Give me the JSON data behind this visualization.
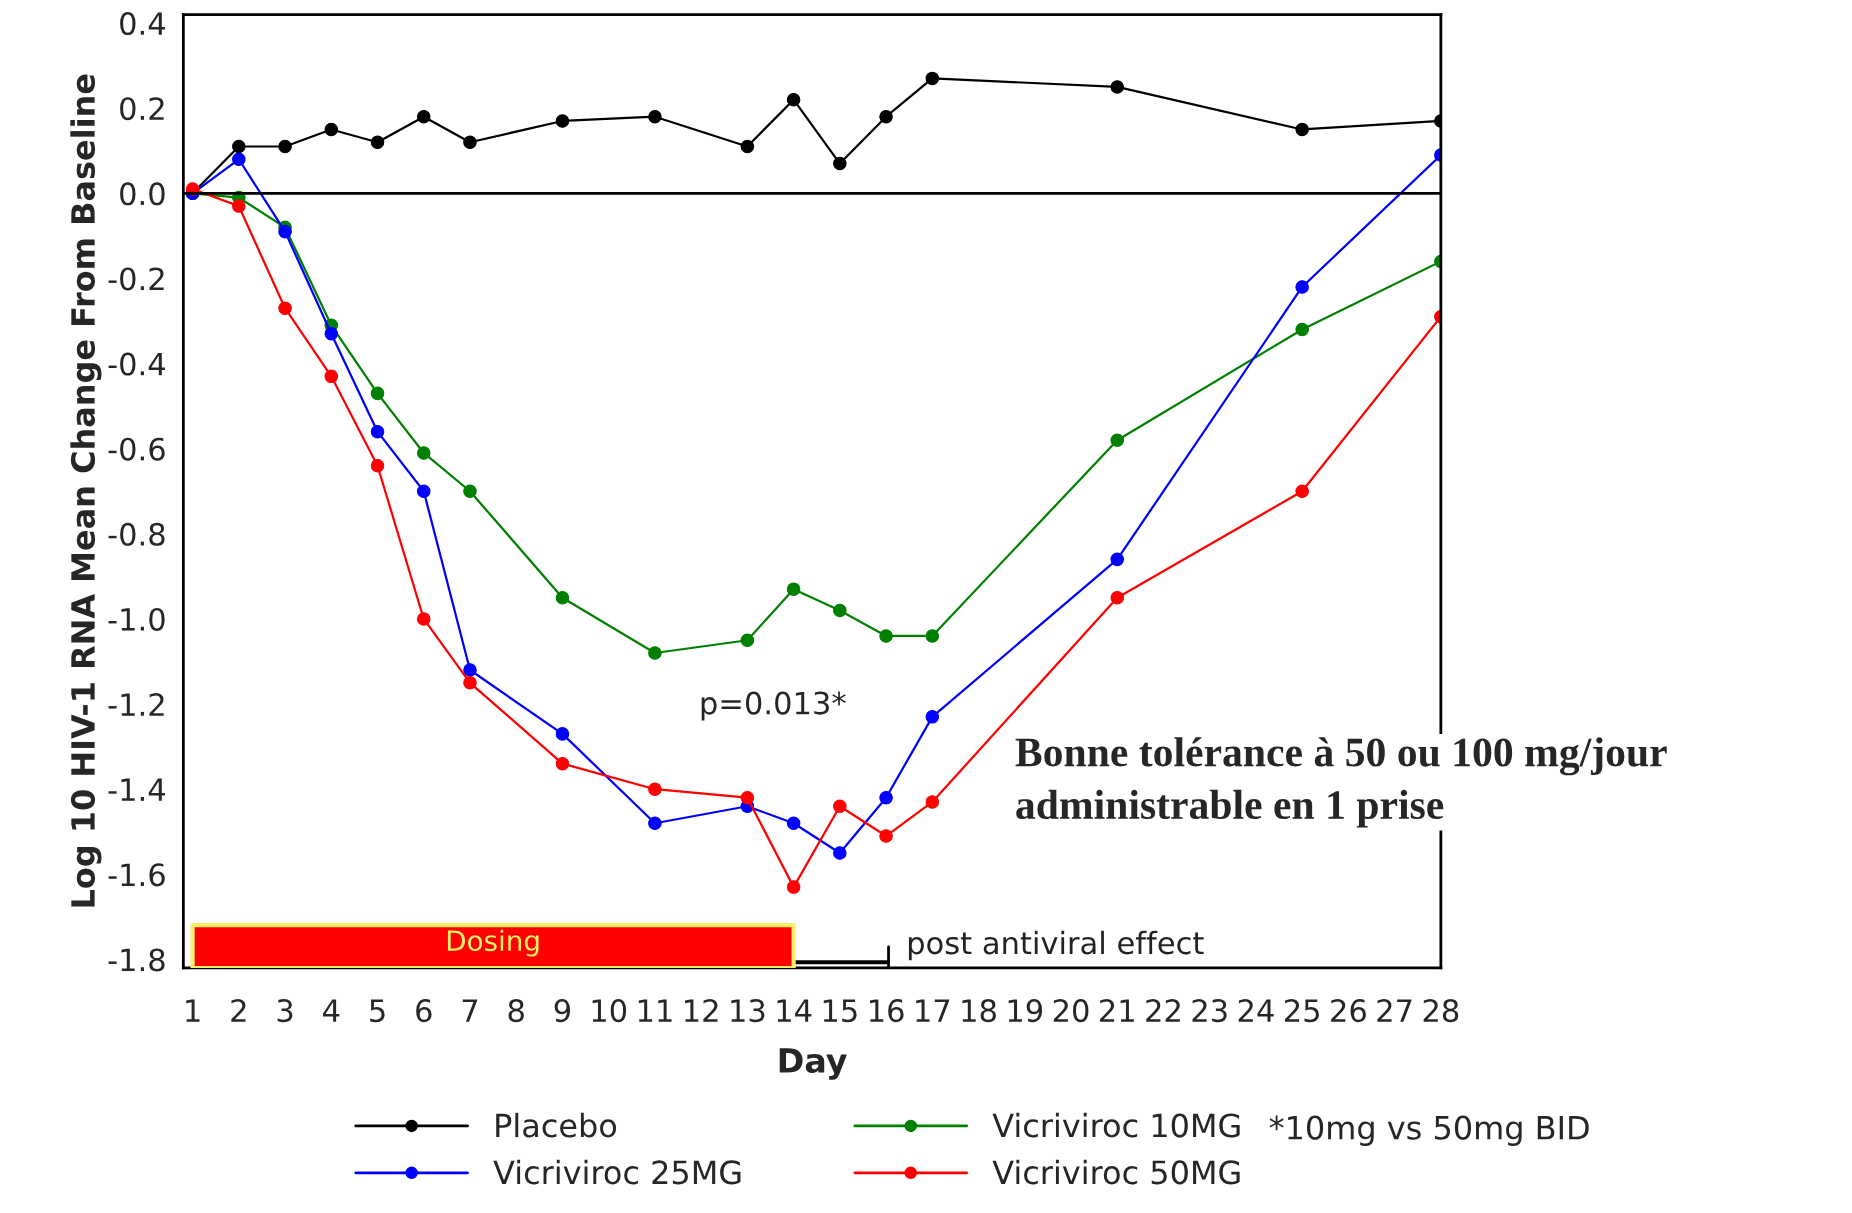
{
  "chart_data": {
    "type": "line",
    "xlabel": "Day",
    "ylabel": "Log 10 HIV-1 RNA Mean Change From Baseline",
    "x": [
      1,
      2,
      3,
      4,
      5,
      6,
      7,
      9,
      11,
      13,
      14,
      15,
      16,
      17,
      21,
      25,
      28
    ],
    "series": [
      {
        "name": "Placebo",
        "color": "#000000",
        "values": [
          0.0,
          0.11,
          0.11,
          0.15,
          0.12,
          0.18,
          0.12,
          0.17,
          0.18,
          0.11,
          0.22,
          0.07,
          0.18,
          0.27,
          0.25,
          0.15,
          0.17
        ]
      },
      {
        "name": "Vicriviroc 10MG",
        "color": "#008000",
        "values": [
          0.0,
          -0.01,
          -0.08,
          -0.31,
          -0.47,
          -0.61,
          -0.7,
          -0.95,
          -1.08,
          -1.05,
          -0.93,
          -0.98,
          -1.04,
          -1.04,
          -0.58,
          -0.32,
          -0.16
        ]
      },
      {
        "name": "Vicriviroc 25MG",
        "color": "#0000ff",
        "values": [
          0.0,
          0.08,
          -0.09,
          -0.33,
          -0.56,
          -0.7,
          -1.12,
          -1.27,
          -1.48,
          -1.44,
          -1.48,
          -1.55,
          -1.42,
          -1.23,
          -0.86,
          -0.22,
          0.09
        ]
      },
      {
        "name": "Vicriviroc 50MG",
        "color": "#ff0000",
        "values": [
          0.01,
          -0.03,
          -0.27,
          -0.43,
          -0.64,
          -1.0,
          -1.15,
          -1.34,
          -1.4,
          -1.42,
          -1.63,
          -1.44,
          -1.51,
          -1.43,
          -0.95,
          -0.7,
          -0.29
        ]
      }
    ],
    "xlim": [
      0.8,
      28
    ],
    "xticks": [
      1,
      2,
      3,
      4,
      5,
      6,
      7,
      8,
      9,
      10,
      11,
      12,
      13,
      14,
      15,
      16,
      17,
      18,
      19,
      20,
      21,
      22,
      23,
      24,
      25,
      26,
      27,
      28
    ],
    "ylim": [
      -1.82,
      0.42
    ],
    "yticks": [
      0.4,
      0.2,
      {
        "value": 0,
        "label": "0.0"
      },
      -0.2,
      -0.4,
      -0.6,
      -0.8,
      {
        "value": -1,
        "label": "-1.0"
      },
      -1.2,
      -1.4,
      -1.6,
      -1.8
    ],
    "ref_lines": [
      {
        "axis": "y",
        "value": 0,
        "color": "#000000"
      }
    ],
    "bands": [
      {
        "axis": "x",
        "from": 1,
        "to": 14,
        "label": "Dosing",
        "color": "#ff0000"
      }
    ],
    "annotations": [
      "p=0.013*",
      "Bonne tolérance à 50 ou 100 mg/jour\nadministrable en 1 prise",
      "*10mg vs 50mg BID",
      "post antiviral effect"
    ],
    "marker": "circle",
    "line_style": "solid",
    "grid": false,
    "legend": "bottom"
  }
}
